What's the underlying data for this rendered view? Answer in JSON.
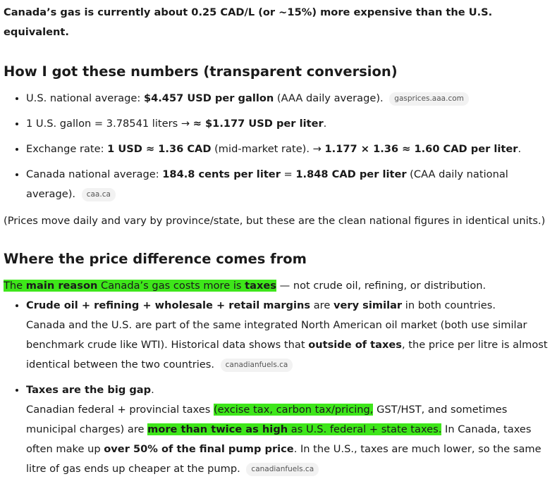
{
  "blocks": [
    {
      "intro": "Canada’s gas is currently about 0.25 CAD/L (or ~15%) more expensive than the U.S. equivalent."
    },
    {
      "heading": "How I got these numbers (transparent conversion)"
    },
    {
      "list": [
        [
          [
            {
              "text": "U.S. national average: "
            },
            {
              "text": "$4.457 USD per gallon",
              "bold": true
            },
            {
              "text": " (AAA daily average). "
            },
            {
              "cite": "gasprices.aaa.com"
            }
          ]
        ],
        [
          [
            {
              "text": "1 U.S. gallon = 3.78541 liters → "
            },
            {
              "text": "≈ $1.177 USD per liter",
              "bold": true
            },
            {
              "text": "."
            }
          ]
        ],
        [
          [
            {
              "text": "Exchange rate: "
            },
            {
              "text": "1 USD ≈ 1.36 CAD",
              "bold": true
            },
            {
              "text": " (mid-market rate). → "
            },
            {
              "text": "1.177 × 1.36 ≈ 1.60 CAD per liter",
              "bold": true
            },
            {
              "text": "."
            }
          ]
        ],
        [
          [
            {
              "text": "Canada national average: "
            },
            {
              "text": "184.8 cents per liter",
              "bold": true
            },
            {
              "text": " = "
            },
            {
              "text": "1.848 CAD per liter",
              "bold": true
            },
            {
              "text": " (CAA daily national average). "
            },
            {
              "cite": "caa.ca"
            }
          ]
        ]
      ]
    },
    {
      "paragraph": [
        {
          "text": "(Prices move daily and vary by province/state, but these are the clean national figures in identical units.)"
        }
      ]
    },
    {
      "heading": "Where the price difference comes from"
    },
    {
      "lead": [
        {
          "text": "The ",
          "highlight": true
        },
        {
          "text": "main reason",
          "bold": true,
          "highlight": true
        },
        {
          "text": " Canada’s gas costs more is ",
          "highlight": true
        },
        {
          "text": "taxes",
          "bold": true,
          "highlight": true
        },
        {
          "text": " — not crude oil, refining, or distribution."
        }
      ]
    },
    {
      "list": [
        [
          [
            {
              "text": "Crude oil + refining + wholesale + retail margins",
              "bold": true
            },
            {
              "text": " are "
            },
            {
              "text": "very similar",
              "bold": true
            },
            {
              "text": " in both countries."
            }
          ],
          [
            {
              "text": "Canada and the U.S. are part of the same integrated North American oil market (both use similar benchmark crude like WTI). Historical data shows that "
            },
            {
              "text": "outside of taxes",
              "bold": true
            },
            {
              "text": ", the price per litre is almost identical between the two countries. "
            },
            {
              "cite": "canadianfuels.ca"
            }
          ]
        ],
        [
          [
            {
              "text": "Taxes are the big gap",
              "bold": true
            },
            {
              "text": "."
            }
          ],
          [
            {
              "text": "Canadian federal + provincial taxes "
            },
            {
              "text": "(excise tax, carbon tax/pricing,",
              "highlight": true
            },
            {
              "text": " GST/HST, and sometimes municipal charges) are "
            },
            {
              "text": "more than twice as high",
              "bold": true,
              "highlight": true
            },
            {
              "text": " as U.S. federal + state taxes.",
              "highlight": true
            },
            {
              "text": " In Canada, taxes often make up "
            },
            {
              "text": "over 50% of the final pump price",
              "bold": true
            },
            {
              "text": ". In the U.S., taxes are much lower, so the same litre of gas ends up cheaper at the pump. "
            },
            {
              "cite": "canadianfuels.ca"
            }
          ]
        ]
      ]
    }
  ]
}
